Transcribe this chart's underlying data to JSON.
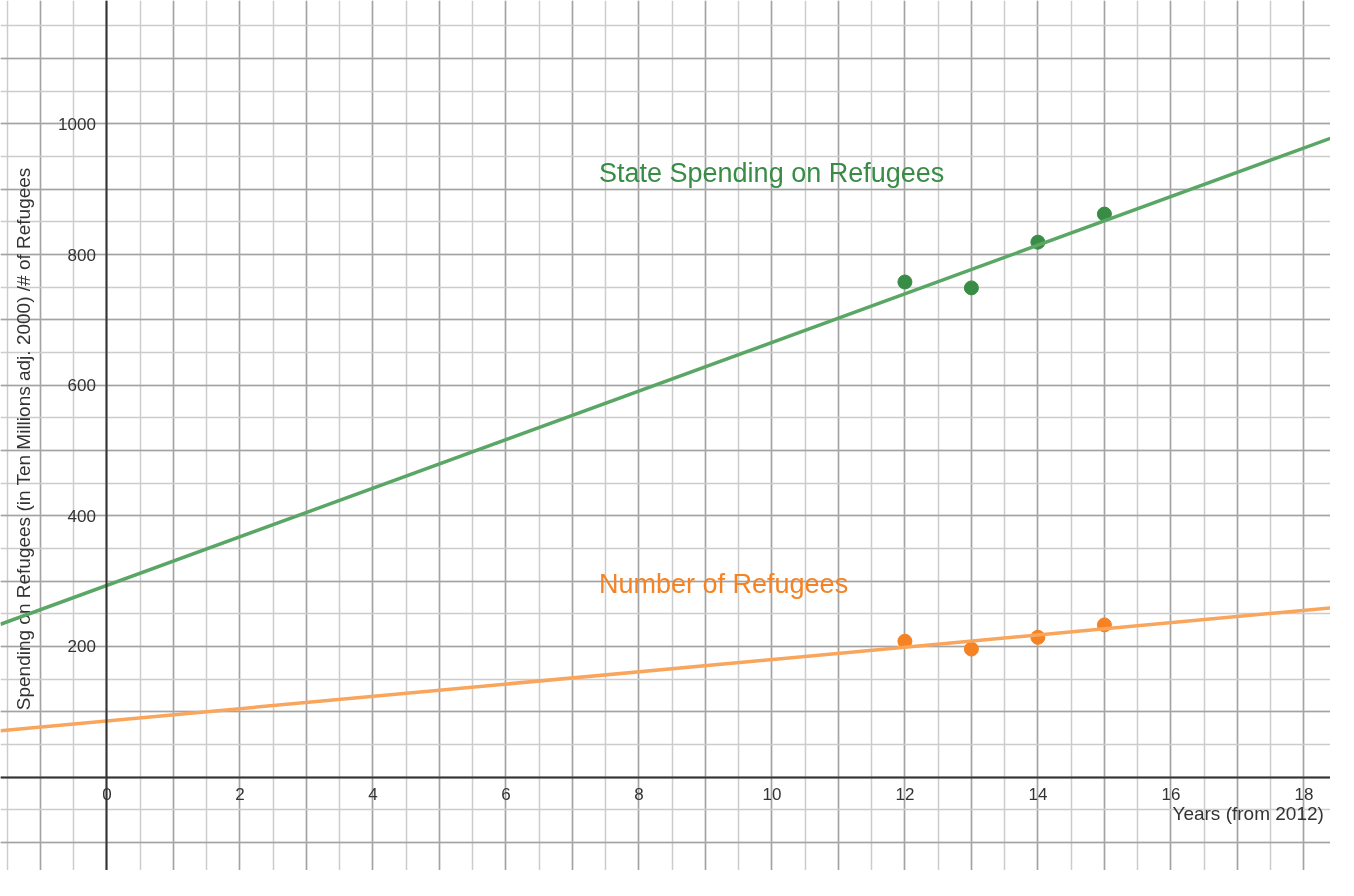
{
  "chart_data": {
    "type": "scatter",
    "xlabel": "Years (from 2012)",
    "ylabel": "Spending on Refugees (in Ten Millions adj. 2000) /# of Refugees",
    "xlim": [
      -1.6,
      18.4
    ],
    "ylim": [
      -143,
      1189
    ],
    "xticks": [
      0,
      2,
      4,
      6,
      8,
      10,
      12,
      14,
      16,
      18
    ],
    "yticks": [
      200,
      400,
      600,
      800,
      1000
    ],
    "grid": true,
    "marker": "circle",
    "series": [
      {
        "name": "State Spending on Refugees",
        "color": "#388c46",
        "x": [
          12,
          13,
          14,
          15
        ],
        "values": [
          758,
          749,
          819,
          862
        ]
      },
      {
        "type": "line",
        "marker": "none",
        "color": "#5aa765",
        "x": [
          -1.6,
          18.4
        ],
        "values": [
          234,
          978
        ]
      },
      {
        "name": "Number of Refugees",
        "color": "#f58223",
        "x": [
          12,
          13,
          14,
          15
        ],
        "values": [
          208,
          196,
          214,
          233
        ]
      },
      {
        "type": "line",
        "marker": "none",
        "color": "#f9a55c",
        "x": [
          -1.6,
          18.4
        ],
        "values": [
          71,
          259
        ]
      }
    ]
  }
}
